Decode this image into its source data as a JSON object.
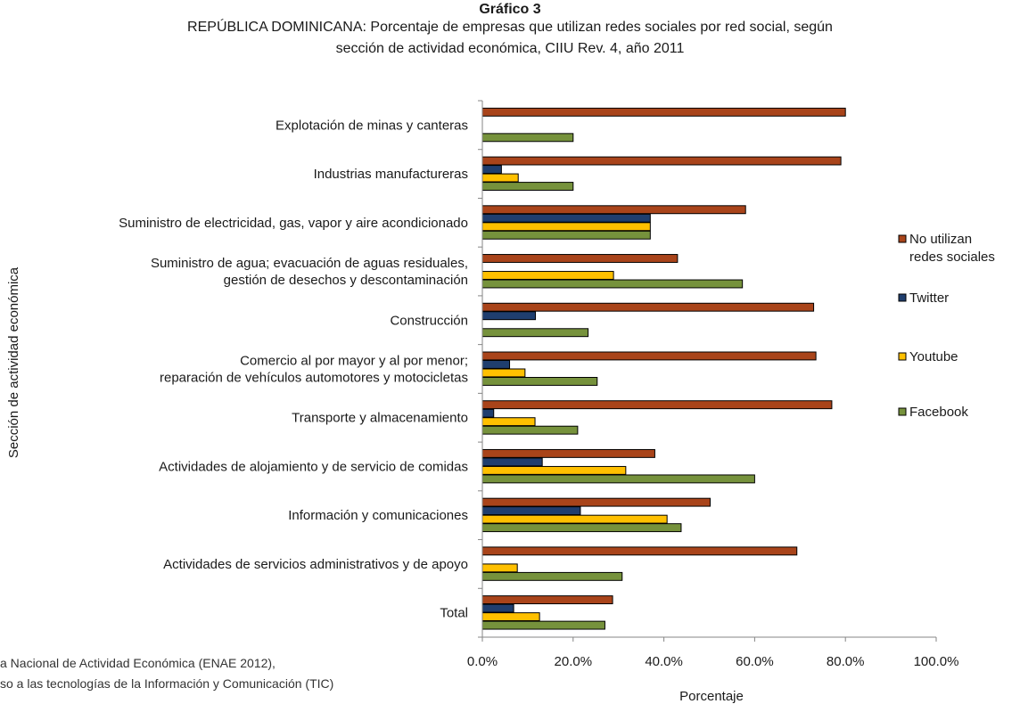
{
  "header": {
    "label": "Gráfico 3",
    "title_line1": "REPÚBLICA DOMINICANA: Porcentaje de empresas que utilizan redes sociales por red social, según",
    "title_line2": "sección de actividad económica, CIIU Rev. 4, año 2011"
  },
  "source": {
    "line1": "a Nacional de Actividad Económica (ENAE 2012),",
    "line2": "so a las tecnologías de la Información y Comunicación (TIC)"
  },
  "chart_data": {
    "type": "bar",
    "orientation": "horizontal",
    "title": "REPÚBLICA DOMINICANA: Porcentaje de empresas que utilizan redes sociales por red social, según sección de actividad económica, CIIU Rev. 4, año 2011",
    "xlabel": "Porcentaje",
    "ylabel": "Sección de actividad económica",
    "xlim": [
      0,
      100
    ],
    "xticks": [
      "0.0%",
      "20.0%",
      "40.0%",
      "60.0%",
      "80.0%",
      "100.0%"
    ],
    "grid": false,
    "legend_position": "right",
    "categories": [
      [
        "Explotación de minas y canteras"
      ],
      [
        "Industrias manufactureras"
      ],
      [
        "Suministro de electricidad, gas, vapor y aire acondicionado"
      ],
      [
        "Suministro de agua; evacuación de aguas residuales,",
        "gestión de desechos y descontaminación"
      ],
      [
        "Construcción"
      ],
      [
        "Comercio al por mayor y al por menor;",
        "reparación de vehículos automotores y motocicletas"
      ],
      [
        "Transporte y almacenamiento"
      ],
      [
        "Actividades de alojamiento y de servicio de comidas"
      ],
      [
        "Información y comunicaciones"
      ],
      [
        "Actividades de servicios administrativos y de apoyo"
      ],
      [
        "Total"
      ]
    ],
    "series": [
      {
        "name": "No utilizan redes sociales",
        "legend_lines": [
          "No utilizan",
          "redes sociales"
        ],
        "color": "#a9441a",
        "values": [
          80.0,
          79.0,
          58.0,
          43.0,
          73.0,
          73.5,
          77.0,
          38.0,
          50.2,
          69.3,
          28.7
        ]
      },
      {
        "name": "Twitter",
        "legend_lines": [
          "Twitter"
        ],
        "color": "#1f3e6e",
        "values": [
          0,
          4.2,
          37.0,
          0,
          11.7,
          6.0,
          2.5,
          13.2,
          21.6,
          0,
          6.9
        ]
      },
      {
        "name": "Youtube",
        "legend_lines": [
          "Youtube"
        ],
        "color": "#ffc000",
        "values": [
          0,
          7.9,
          37.0,
          28.9,
          0,
          9.4,
          11.6,
          31.6,
          40.7,
          7.7,
          12.6
        ]
      },
      {
        "name": "Facebook",
        "legend_lines": [
          "Facebook"
        ],
        "color": "#76923c",
        "values": [
          20.0,
          20.0,
          37.0,
          57.3,
          23.3,
          25.3,
          21.0,
          60.0,
          43.8,
          30.8,
          27.0
        ]
      }
    ]
  }
}
